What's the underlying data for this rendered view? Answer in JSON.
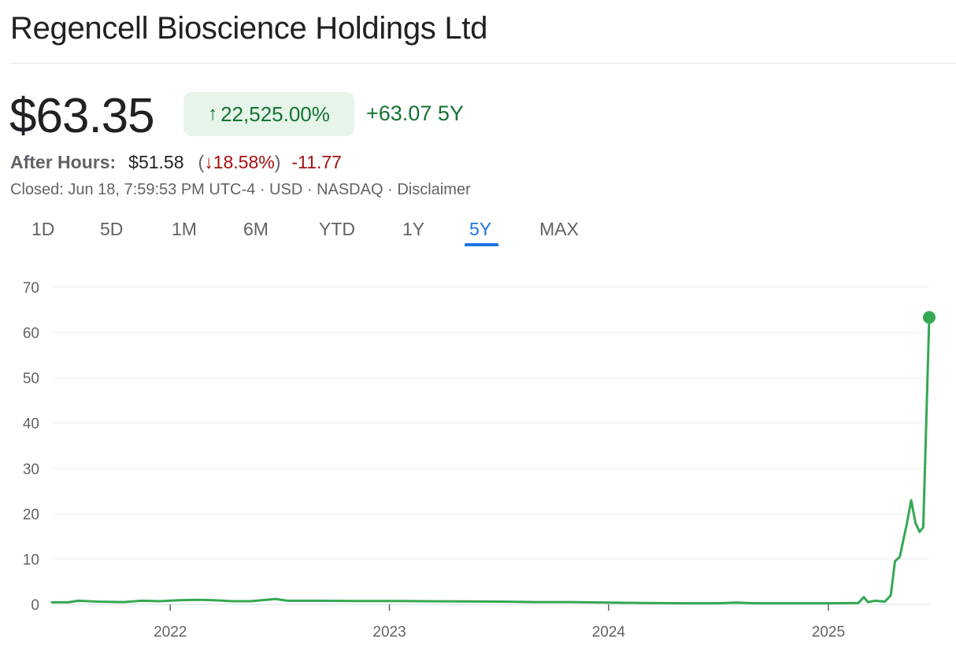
{
  "header": {
    "title": "Regencell Bioscience Holdings Ltd"
  },
  "quote": {
    "price": "$63.35",
    "change_pct": "22,525.00%",
    "change_abs": "+63.07",
    "period": "5Y",
    "accent_color": "#137333"
  },
  "after_hours": {
    "label": "After Hours:",
    "price": "$51.58",
    "open_paren": "(",
    "change_pct": "18.58%",
    "close_paren": ")",
    "change_abs": "-11.77",
    "color": "#a50e0e"
  },
  "meta": {
    "closed": "Closed: Jun 18, 7:59:53 PM UTC-4",
    "sep1": " · ",
    "currency": "USD",
    "sep2": " · ",
    "exchange": "NASDAQ",
    "sep3": " · ",
    "disclaimer": "Disclaimer"
  },
  "tabs": [
    {
      "label": "1D",
      "active": false
    },
    {
      "label": "5D",
      "active": false
    },
    {
      "label": "1M",
      "active": false
    },
    {
      "label": "6M",
      "active": false
    },
    {
      "label": "YTD",
      "active": false
    },
    {
      "label": "1Y",
      "active": false
    },
    {
      "label": "5Y",
      "active": true
    },
    {
      "label": "MAX",
      "active": false
    }
  ],
  "chart_data": {
    "type": "line",
    "title": "",
    "xlabel": "",
    "ylabel": "",
    "ylim": [
      0,
      70
    ],
    "xlim": [
      "2021-06-18",
      "2025-06-18"
    ],
    "yticks": [
      0,
      10,
      20,
      30,
      40,
      50,
      60,
      70
    ],
    "xticks": [
      "2022",
      "2023",
      "2024",
      "2025"
    ],
    "grid": true,
    "line_color": "#34a853",
    "series": [
      {
        "points": [
          [
            "2021-06-18",
            0.45
          ],
          [
            "2021-07-15",
            0.45
          ],
          [
            "2021-08-01",
            0.8
          ],
          [
            "2021-09-01",
            0.6
          ],
          [
            "2021-10-15",
            0.5
          ],
          [
            "2021-11-15",
            0.8
          ],
          [
            "2021-12-15",
            0.7
          ],
          [
            "2022-01-15",
            0.9
          ],
          [
            "2022-02-15",
            1.0
          ],
          [
            "2022-03-15",
            0.9
          ],
          [
            "2022-04-15",
            0.7
          ],
          [
            "2022-05-15",
            0.7
          ],
          [
            "2022-06-10",
            1.0
          ],
          [
            "2022-06-25",
            1.2
          ],
          [
            "2022-07-15",
            0.8
          ],
          [
            "2022-09-01",
            0.8
          ],
          [
            "2022-11-01",
            0.75
          ],
          [
            "2023-01-01",
            0.75
          ],
          [
            "2023-03-01",
            0.7
          ],
          [
            "2023-05-01",
            0.65
          ],
          [
            "2023-07-01",
            0.6
          ],
          [
            "2023-09-01",
            0.5
          ],
          [
            "2023-11-01",
            0.5
          ],
          [
            "2024-01-01",
            0.4
          ],
          [
            "2024-03-01",
            0.3
          ],
          [
            "2024-05-01",
            0.25
          ],
          [
            "2024-07-01",
            0.25
          ],
          [
            "2024-08-01",
            0.4
          ],
          [
            "2024-09-01",
            0.25
          ],
          [
            "2024-11-01",
            0.25
          ],
          [
            "2025-01-01",
            0.25
          ],
          [
            "2025-02-20",
            0.3
          ],
          [
            "2025-03-01",
            1.6
          ],
          [
            "2025-03-08",
            0.5
          ],
          [
            "2025-03-20",
            0.8
          ],
          [
            "2025-04-05",
            0.6
          ],
          [
            "2025-04-15",
            2.0
          ],
          [
            "2025-04-22",
            9.5
          ],
          [
            "2025-04-30",
            10.5
          ],
          [
            "2025-05-12",
            18.0
          ],
          [
            "2025-05-19",
            23.0
          ],
          [
            "2025-05-26",
            18.0
          ],
          [
            "2025-06-02",
            16.0
          ],
          [
            "2025-06-08",
            17.0
          ],
          [
            "2025-06-13",
            40.0
          ],
          [
            "2025-06-18",
            63.35
          ]
        ]
      }
    ]
  }
}
